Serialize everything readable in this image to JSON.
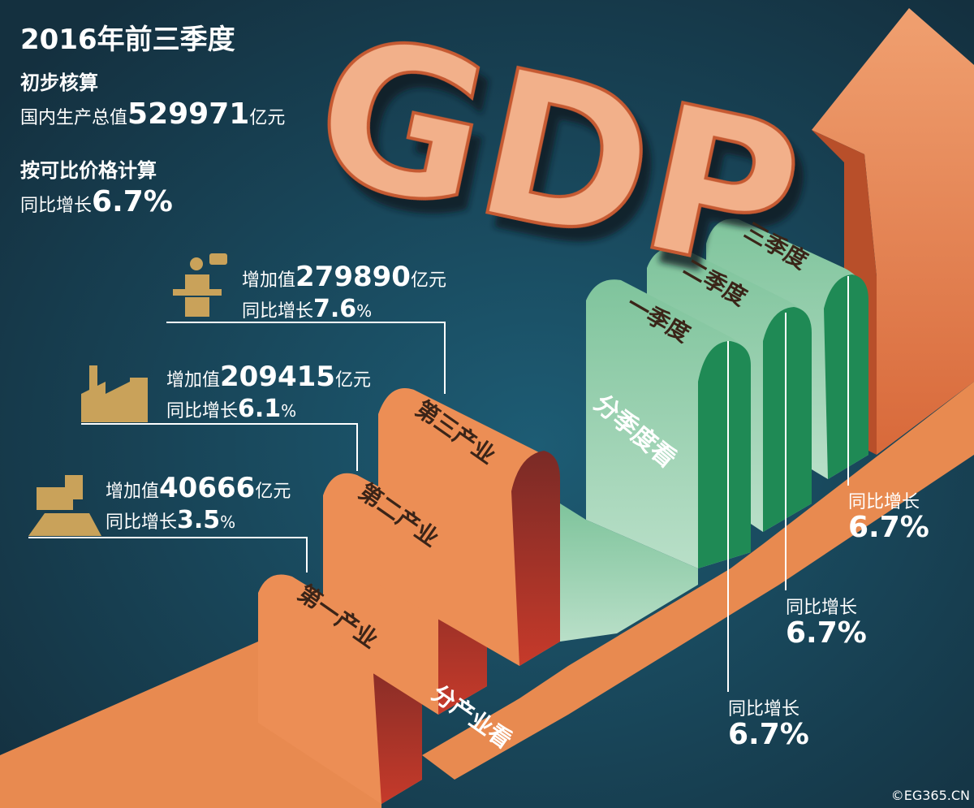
{
  "header": {
    "title": "2016年前三季度",
    "subtitle": "初步核算",
    "gdp_label": "国内生产总值",
    "gdp_value": "529971",
    "gdp_unit": "亿元",
    "method": "按可比价格计算",
    "growth_label": "同比增长",
    "growth_value": "6.7%"
  },
  "logo": "GDP",
  "industries": {
    "section_label": "分产业看",
    "items": [
      {
        "name": "第一产业",
        "added_label": "增加值",
        "added_value": "40666",
        "unit": "亿元",
        "growth_label": "同比增长",
        "growth_value": "3.5",
        "growth_unit": "%"
      },
      {
        "name": "第二产业",
        "added_label": "增加值",
        "added_value": "209415",
        "unit": "亿元",
        "growth_label": "同比增长",
        "growth_value": "6.1",
        "growth_unit": "%"
      },
      {
        "name": "第三产业",
        "added_label": "增加值",
        "added_value": "279890",
        "unit": "亿元",
        "growth_label": "同比增长",
        "growth_value": "7.6",
        "growth_unit": "%"
      }
    ]
  },
  "quarters": {
    "section_label": "分季度看",
    "items": [
      {
        "name": "一季度",
        "growth_label": "同比增长",
        "growth_value": "6.7%"
      },
      {
        "name": "二季度",
        "growth_label": "同比增长",
        "growth_value": "6.7%"
      },
      {
        "name": "三季度",
        "growth_label": "同比增长",
        "growth_value": "6.7%"
      }
    ]
  },
  "credit": "©EG365.CN"
}
